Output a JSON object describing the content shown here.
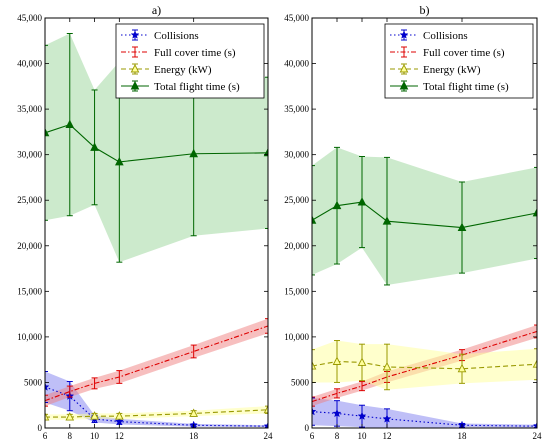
{
  "chart_data": [
    {
      "type": "line",
      "title": "a)",
      "xlabel": "",
      "ylabel": "",
      "xlim": [
        6,
        24
      ],
      "ylim": [
        0,
        45000
      ],
      "x_ticks": [
        6,
        8,
        10,
        12,
        18,
        24
      ],
      "y_ticks": [
        0,
        5000,
        10000,
        15000,
        20000,
        25000,
        30000,
        35000,
        40000,
        45000
      ],
      "y_tick_labels": [
        "0",
        "5000",
        "10,000",
        "15,000",
        "20,000",
        "25,000",
        "30,000",
        "35,000",
        "40,000",
        "45,000"
      ],
      "legend_position": "top-right",
      "grid": false,
      "series": [
        {
          "name": "Collisions",
          "color": "#0000cc",
          "fill": "#8080f0",
          "marker": "star",
          "line_style": "dotted",
          "x": [
            6,
            8,
            10,
            12,
            18,
            24
          ],
          "values": [
            4500,
            3500,
            1000,
            700,
            300,
            200
          ],
          "error": [
            1700,
            1600,
            400,
            300,
            150,
            100
          ]
        },
        {
          "name": "Full cover time (s)",
          "color": "#dd0000",
          "fill": "#f08080",
          "marker": "none",
          "line_style": "dashdot",
          "x": [
            6,
            8,
            10,
            12,
            18,
            24
          ],
          "values": [
            3000,
            4000,
            4900,
            5600,
            8400,
            11200
          ],
          "error": [
            600,
            600,
            600,
            700,
            700,
            800
          ]
        },
        {
          "name": "Energy (kW)",
          "color": "#999900",
          "fill": "#ffff99",
          "marker": "triangle-open",
          "line_style": "dashed",
          "x": [
            6,
            8,
            10,
            12,
            18,
            24
          ],
          "values": [
            1200,
            1200,
            1300,
            1300,
            1600,
            2000
          ],
          "error": [
            300,
            300,
            300,
            300,
            300,
            400
          ]
        },
        {
          "name": "Total flight time (s)",
          "color": "#006600",
          "fill": "#99d699",
          "marker": "triangle",
          "line_style": "solid",
          "x": [
            6,
            8,
            10,
            12,
            18,
            24
          ],
          "values": [
            32400,
            33300,
            30800,
            29200,
            30100,
            30200
          ],
          "error": [
            9600,
            10000,
            6300,
            11000,
            9000,
            8300
          ]
        }
      ]
    },
    {
      "type": "line",
      "title": "b)",
      "xlabel": "",
      "ylabel": "",
      "xlim": [
        6,
        24
      ],
      "ylim": [
        0,
        45000
      ],
      "x_ticks": [
        6,
        8,
        10,
        12,
        18,
        24
      ],
      "y_ticks": [
        0,
        5000,
        10000,
        15000,
        20000,
        25000,
        30000,
        35000,
        40000,
        45000
      ],
      "y_tick_labels": [
        "0",
        "5000",
        "10,000",
        "15,000",
        "20,000",
        "25,000",
        "30,000",
        "35,000",
        "40,000",
        "45,000"
      ],
      "legend_position": "top-right",
      "grid": false,
      "series": [
        {
          "name": "Collisions",
          "color": "#0000cc",
          "fill": "#8080f0",
          "marker": "star",
          "line_style": "dotted",
          "x": [
            6,
            8,
            10,
            12,
            18,
            24
          ],
          "values": [
            1800,
            1600,
            1300,
            1000,
            300,
            200
          ],
          "error": [
            1500,
            1400,
            1200,
            1100,
            200,
            150
          ]
        },
        {
          "name": "Full cover time (s)",
          "color": "#dd0000",
          "fill": "#f08080",
          "marker": "none",
          "line_style": "dashdot",
          "x": [
            6,
            8,
            10,
            12,
            18,
            24
          ],
          "values": [
            2900,
            3800,
            4600,
            5600,
            8000,
            10600
          ],
          "error": [
            500,
            500,
            500,
            600,
            600,
            700
          ]
        },
        {
          "name": "Energy (kW)",
          "color": "#999900",
          "fill": "#ffff99",
          "marker": "triangle-open",
          "line_style": "dashed",
          "x": [
            6,
            8,
            10,
            12,
            18,
            24
          ],
          "values": [
            6800,
            7300,
            7200,
            6700,
            6500,
            7000
          ],
          "error": [
            1800,
            2300,
            2000,
            2500,
            1600,
            1700
          ]
        },
        {
          "name": "Total flight time (s)",
          "color": "#006600",
          "fill": "#99d699",
          "marker": "triangle",
          "line_style": "solid",
          "x": [
            6,
            8,
            10,
            12,
            18,
            24
          ],
          "values": [
            22800,
            24400,
            24800,
            22700,
            22000,
            23600
          ],
          "error": [
            6000,
            6400,
            5000,
            7000,
            5000,
            5000
          ]
        }
      ]
    }
  ]
}
